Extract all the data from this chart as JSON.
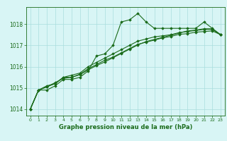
{
  "x": [
    0,
    1,
    2,
    3,
    4,
    5,
    6,
    7,
    8,
    9,
    10,
    11,
    12,
    13,
    14,
    15,
    16,
    17,
    18,
    19,
    20,
    21,
    22,
    23
  ],
  "series1": [
    1014.0,
    1014.9,
    1014.9,
    1015.1,
    1015.4,
    1015.4,
    1015.5,
    1015.8,
    1016.5,
    1016.6,
    1017.0,
    1018.1,
    1018.2,
    1018.5,
    1018.1,
    1017.8,
    1017.8,
    1017.8,
    1017.8,
    1017.8,
    1017.8,
    1018.1,
    1017.8,
    1017.5
  ],
  "series2": [
    1014.0,
    1014.9,
    1015.1,
    1015.2,
    1015.5,
    1015.6,
    1015.7,
    1016.0,
    1016.2,
    1016.4,
    1016.6,
    1016.8,
    1017.0,
    1017.2,
    1017.3,
    1017.4,
    1017.45,
    1017.5,
    1017.6,
    1017.65,
    1017.7,
    1017.75,
    1017.75,
    1017.5
  ],
  "series3": [
    1014.0,
    1014.9,
    1015.05,
    1015.2,
    1015.5,
    1015.5,
    1015.65,
    1015.9,
    1016.1,
    1016.3,
    1016.45,
    1016.65,
    1016.85,
    1017.05,
    1017.15,
    1017.25,
    1017.35,
    1017.42,
    1017.52,
    1017.55,
    1017.62,
    1017.65,
    1017.68,
    1017.5
  ],
  "series4": [
    1014.0,
    1014.9,
    1015.05,
    1015.25,
    1015.45,
    1015.5,
    1015.62,
    1015.85,
    1016.05,
    1016.22,
    1016.42,
    1016.62,
    1016.82,
    1017.02,
    1017.18,
    1017.28,
    1017.38,
    1017.48,
    1017.58,
    1017.68,
    1017.72,
    1017.78,
    1017.78,
    1017.5
  ],
  "line_color": "#1a6b1a",
  "bg_color": "#d8f5f5",
  "grid_color": "#aadddd",
  "xlabel": "Graphe pression niveau de la mer (hPa)",
  "xlabel_color": "#1a6b1a",
  "ylabel_ticks": [
    1014,
    1015,
    1016,
    1017,
    1018
  ],
  "xlim": [
    -0.5,
    23.5
  ],
  "ylim": [
    1013.7,
    1018.8
  ],
  "xticks": [
    0,
    1,
    2,
    3,
    4,
    5,
    6,
    7,
    8,
    9,
    10,
    11,
    12,
    13,
    14,
    15,
    16,
    17,
    18,
    19,
    20,
    21,
    22,
    23
  ],
  "marker": "D",
  "markersize": 1.8,
  "linewidth": 0.8
}
